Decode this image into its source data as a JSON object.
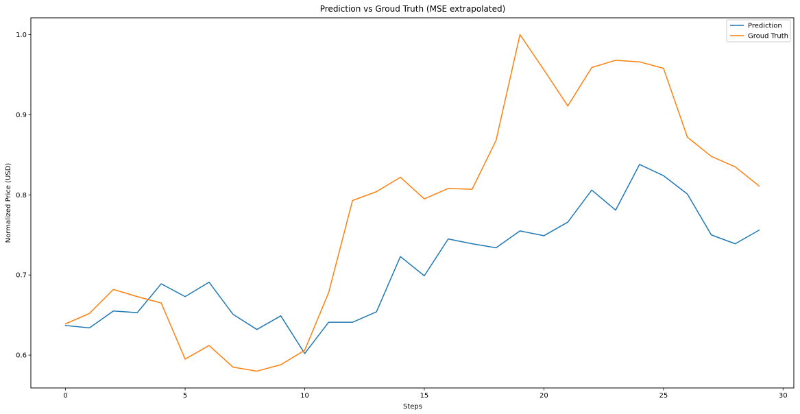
{
  "chart_data": {
    "type": "line",
    "title": "Prediction vs Groud Truth (MSE extrapolated)",
    "xlabel": "Steps",
    "ylabel": "Normalized Price (USD)",
    "xlim": [
      -1.45,
      30.45
    ],
    "ylim": [
      0.559,
      1.021
    ],
    "xticks": [
      0,
      5,
      10,
      15,
      20,
      25,
      30
    ],
    "yticks": [
      0.6,
      0.7,
      0.8,
      0.9,
      1.0
    ],
    "ytick_labels": [
      "0.6",
      "0.7",
      "0.8",
      "0.9",
      "1.0"
    ],
    "grid": false,
    "legend_position": "top-right",
    "x": [
      0,
      1,
      2,
      3,
      4,
      5,
      6,
      7,
      8,
      9,
      10,
      11,
      12,
      13,
      14,
      15,
      16,
      17,
      18,
      19,
      20,
      21,
      22,
      23,
      24,
      25,
      26,
      27,
      28,
      29
    ],
    "series": [
      {
        "name": "Prediction",
        "color": "#1f77b4",
        "values": [
          0.637,
          0.634,
          0.655,
          0.653,
          0.689,
          0.673,
          0.691,
          0.651,
          0.632,
          0.649,
          0.602,
          0.641,
          0.641,
          0.654,
          0.723,
          0.699,
          0.745,
          0.739,
          0.734,
          0.755,
          0.749,
          0.766,
          0.806,
          0.781,
          0.838,
          0.824,
          0.801,
          0.75,
          0.739,
          0.756
        ]
      },
      {
        "name": "Groud Truth",
        "color": "#ff7f0e",
        "values": [
          0.639,
          0.652,
          0.682,
          0.673,
          0.665,
          0.595,
          0.612,
          0.585,
          0.58,
          0.588,
          0.606,
          0.678,
          0.793,
          0.804,
          0.822,
          0.795,
          0.808,
          0.807,
          0.868,
          1.0,
          0.956,
          0.911,
          0.959,
          0.968,
          0.966,
          0.958,
          0.872,
          0.848,
          0.835,
          0.811
        ]
      }
    ]
  }
}
